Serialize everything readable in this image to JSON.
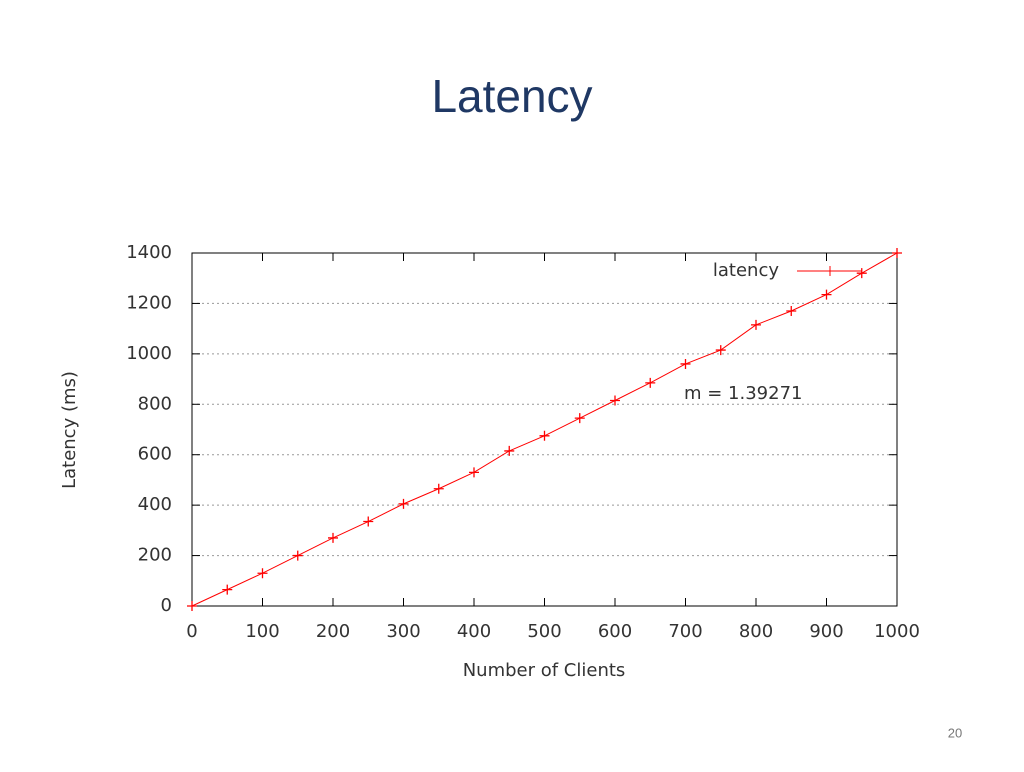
{
  "page_number": "20",
  "chart_data": {
    "type": "line",
    "title": "Latency",
    "x_label": "Number of Clients",
    "y_label": "Latency (ms)",
    "annotation": "m = 1.39271",
    "x": [
      0,
      50,
      100,
      150,
      200,
      250,
      300,
      350,
      400,
      450,
      500,
      550,
      600,
      650,
      700,
      750,
      800,
      850,
      900,
      950,
      1000
    ],
    "series": [
      {
        "name": "latency",
        "color": "#ff0000",
        "values": [
          0,
          65,
          130,
          200,
          270,
          335,
          405,
          465,
          530,
          615,
          675,
          745,
          815,
          885,
          960,
          1015,
          1115,
          1170,
          1235,
          1320,
          1400
        ]
      }
    ],
    "xlim": [
      0,
      1000
    ],
    "xticks": [
      0,
      100,
      200,
      300,
      400,
      500,
      600,
      700,
      800,
      900,
      1000
    ],
    "ylim": [
      0,
      1400
    ],
    "yticks": [
      0,
      200,
      400,
      600,
      800,
      1000,
      1200,
      1400
    ],
    "grid": true,
    "legend": "top-right"
  }
}
